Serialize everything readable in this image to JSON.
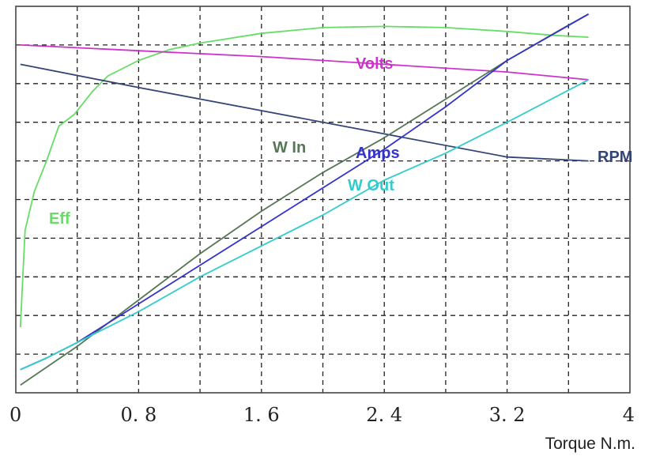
{
  "chart_data": {
    "type": "line",
    "xlabel": "Torque N.m.",
    "xlim": [
      0,
      4
    ],
    "x_ticks": [
      "0",
      "0. 8",
      "1. 6",
      "2. 4",
      "3. 2",
      "4"
    ],
    "y_scale": "normalized",
    "ylim": [
      0,
      1
    ],
    "grid": true,
    "series": [
      {
        "name": "Eff",
        "color": "#66dd66",
        "x": [
          0.03,
          0.06,
          0.12,
          0.2,
          0.28,
          0.38,
          0.5,
          0.6,
          0.8,
          1.0,
          1.2,
          1.6,
          2.0,
          2.4,
          2.8,
          3.2,
          3.5,
          3.73
        ],
        "y": [
          0.17,
          0.42,
          0.52,
          0.6,
          0.69,
          0.72,
          0.78,
          0.82,
          0.86,
          0.888,
          0.905,
          0.93,
          0.945,
          0.948,
          0.945,
          0.935,
          0.925,
          0.92
        ]
      },
      {
        "name": "Volts",
        "color": "#cc33cc",
        "x": [
          0.03,
          0.8,
          1.6,
          2.4,
          3.2,
          3.73
        ],
        "y": [
          0.9,
          0.885,
          0.87,
          0.85,
          0.83,
          0.81
        ]
      },
      {
        "name": "RPM",
        "color": "#334477",
        "x": [
          0.03,
          0.8,
          1.6,
          2.4,
          3.2,
          3.73
        ],
        "y": [
          0.85,
          0.79,
          0.73,
          0.67,
          0.61,
          0.6
        ]
      },
      {
        "name": "W In",
        "color": "#557755",
        "x": [
          0.03,
          0.4,
          0.8,
          1.2,
          1.6,
          2.0,
          2.4,
          2.8,
          3.2,
          3.55,
          3.73
        ],
        "y": [
          0.02,
          0.12,
          0.24,
          0.36,
          0.47,
          0.57,
          0.66,
          0.76,
          0.86,
          0.94,
          0.98
        ]
      },
      {
        "name": "Amps",
        "color": "#3333cc",
        "x": [
          0.03,
          0.2,
          0.4,
          0.8,
          1.2,
          1.6,
          2.0,
          2.4,
          2.8,
          3.2,
          3.73
        ],
        "y": [
          0.06,
          0.09,
          0.13,
          0.23,
          0.33,
          0.43,
          0.53,
          0.63,
          0.74,
          0.86,
          0.98
        ]
      },
      {
        "name": "W Out",
        "color": "#33cccc",
        "x": [
          0.03,
          0.2,
          0.4,
          0.8,
          1.2,
          1.6,
          2.0,
          2.4,
          2.8,
          3.2,
          3.73
        ],
        "y": [
          0.06,
          0.09,
          0.13,
          0.21,
          0.3,
          0.38,
          0.46,
          0.55,
          0.62,
          0.7,
          0.81
        ]
      }
    ]
  }
}
